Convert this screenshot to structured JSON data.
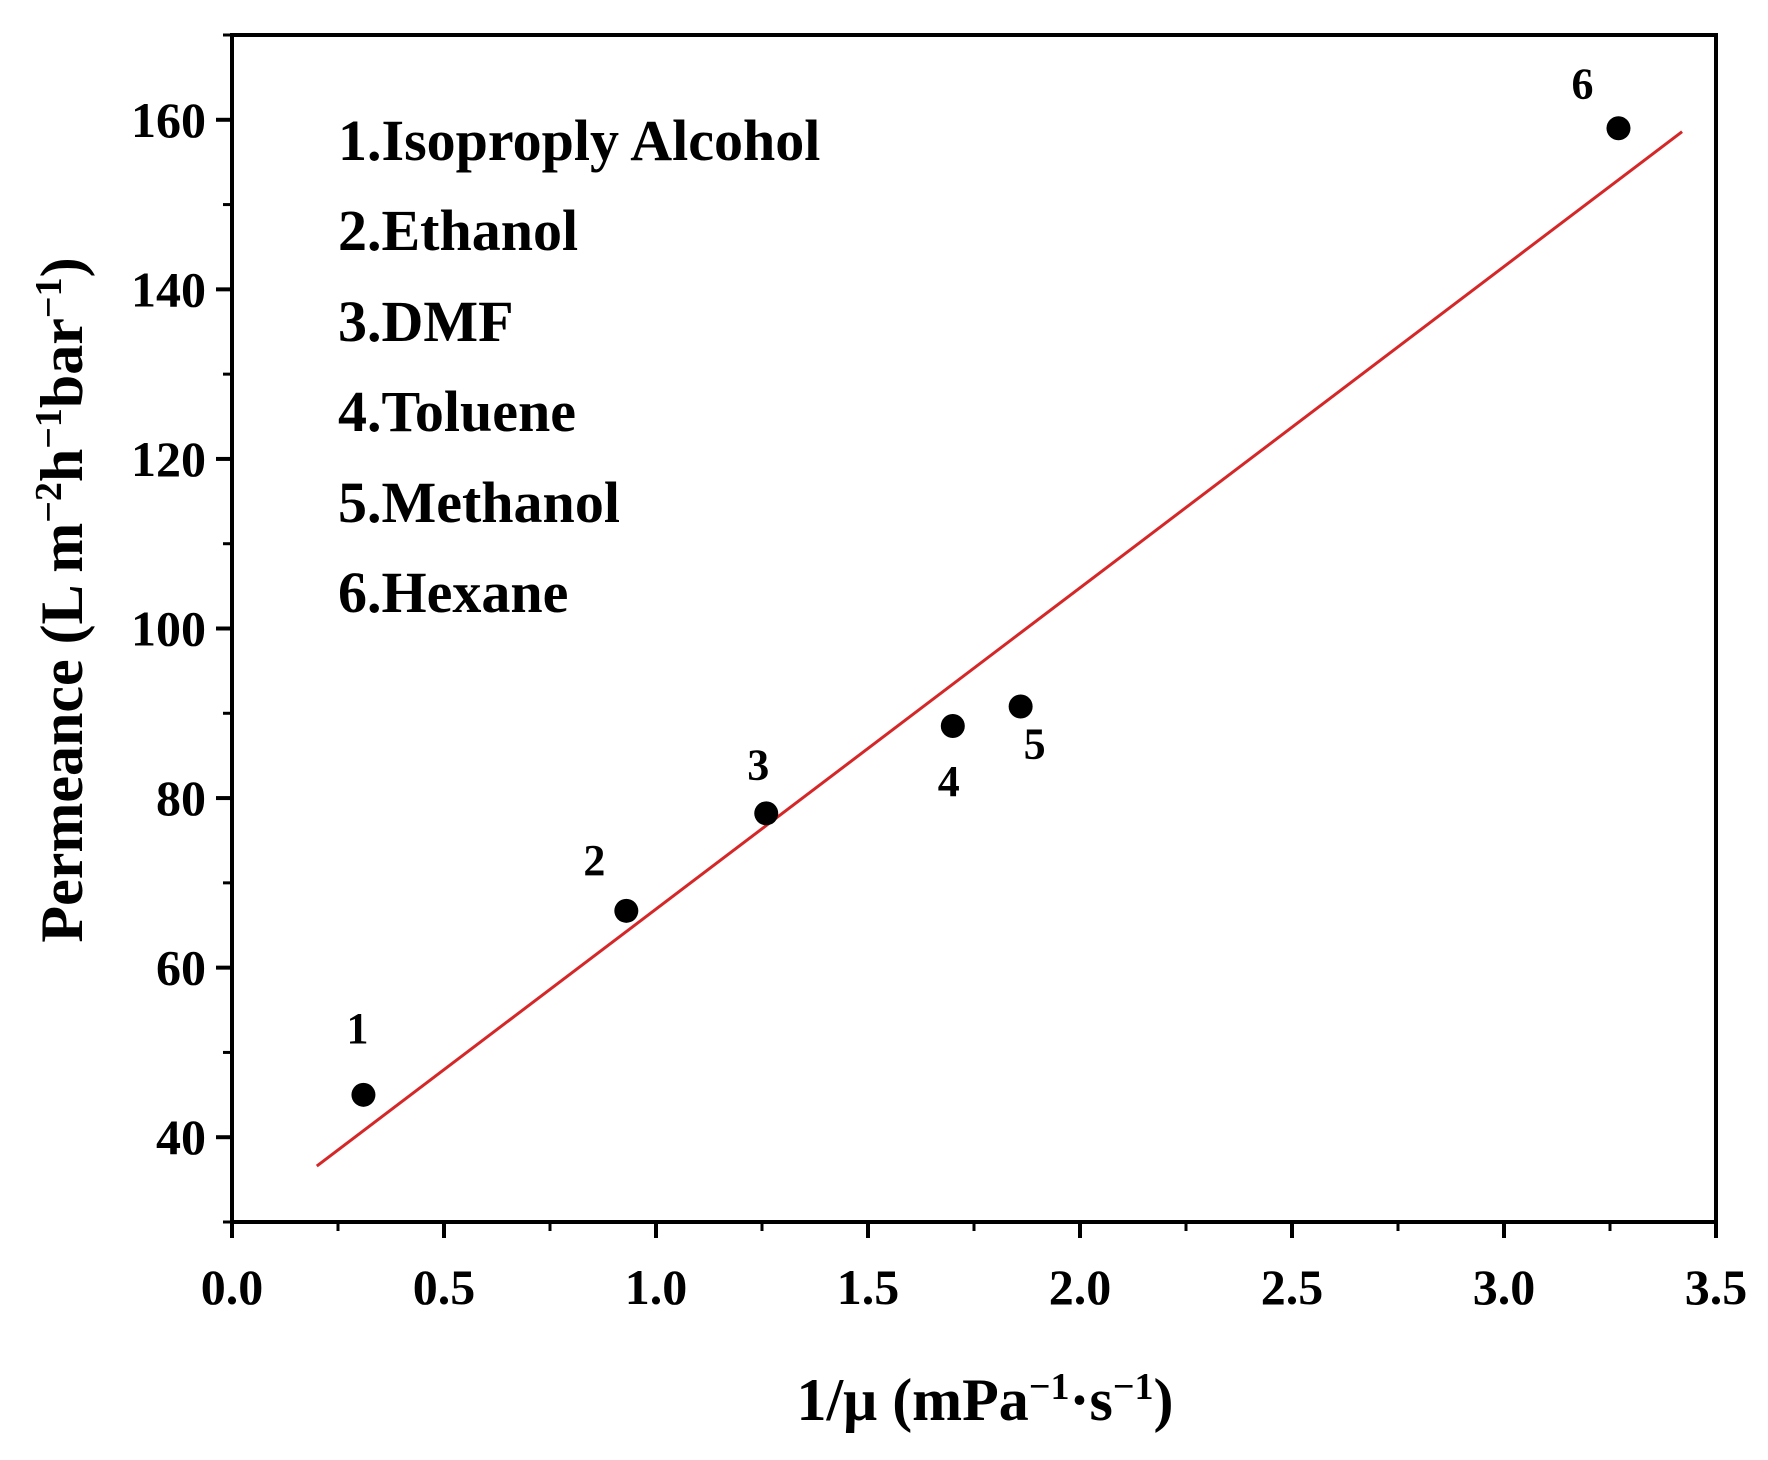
{
  "chart_data": {
    "type": "scatter",
    "title": "",
    "xlabel_main": "1/μ (mPa",
    "xlabel_sup1": "−1",
    "xlabel_mid": "·s",
    "xlabel_sup2": "−1",
    "xlabel_end": ")",
    "ylabel_main": "Permeance (L m",
    "ylabel_sup1": "−2",
    "ylabel_mid1": "h",
    "ylabel_sup2": "−1",
    "ylabel_mid2": "bar",
    "ylabel_sup3": "−1",
    "ylabel_end": ")",
    "xlim": [
      0.0,
      3.5
    ],
    "ylim": [
      30,
      170
    ],
    "x_ticks": [
      "0.0",
      "0.5",
      "1.0",
      "1.5",
      "2.0",
      "2.5",
      "3.0",
      "3.5"
    ],
    "y_ticks": [
      "40",
      "60",
      "80",
      "100",
      "120",
      "140",
      "160"
    ],
    "points": [
      {
        "label": "1",
        "x": 0.31,
        "y": 45.0
      },
      {
        "label": "2",
        "x": 0.93,
        "y": 66.7
      },
      {
        "label": "3",
        "x": 1.26,
        "y": 78.2
      },
      {
        "label": "4",
        "x": 1.7,
        "y": 88.5
      },
      {
        "label": "5",
        "x": 1.86,
        "y": 90.8
      },
      {
        "label": "6",
        "x": 3.27,
        "y": 159.0
      }
    ],
    "fit_line": {
      "x": [
        0.2,
        3.42
      ],
      "y": [
        36.6,
        158.6
      ],
      "color": "#d62728"
    },
    "legend": [
      "1.Isoproply Alcohol",
      "2.Ethanol",
      "3.DMF",
      "4.Toluene",
      "5.Methanol",
      "6.Hexane"
    ],
    "point_color": "#000000",
    "axis_color": "#000000"
  }
}
